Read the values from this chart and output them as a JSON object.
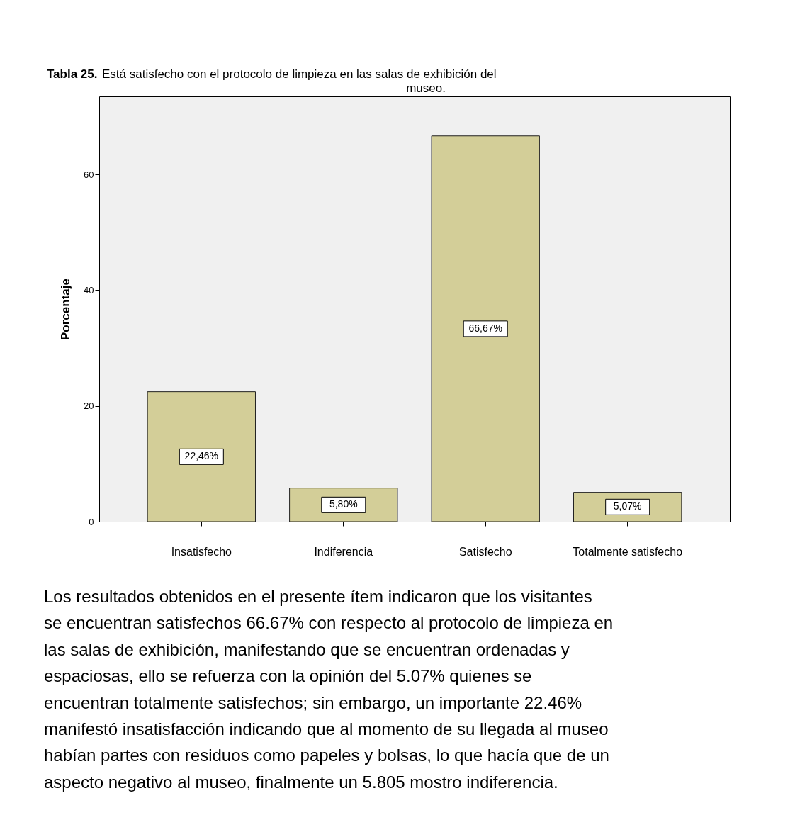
{
  "chart_data": {
    "type": "bar",
    "title": "Tabla 25. Está satisfecho con el protocolo de limpieza en las salas de exhibición del museo.",
    "ylabel": "Porcentaje",
    "categories": [
      "Insatisfecho",
      "Indiferencia",
      "Satisfecho",
      "Totalmente satisfecho"
    ],
    "values": [
      22.46,
      5.8,
      66.67,
      5.07
    ],
    "value_labels": [
      "22,46%",
      "5,80%",
      "66,67%",
      "5,07%"
    ],
    "color": "#d3ce98",
    "ylim": [
      0,
      73.5
    ],
    "yticks": [
      0,
      20,
      40,
      60
    ],
    "grid": false,
    "annotations": [
      "Los resultados obtenidos en el presente ítem indicaron que los visitantes se encuentran satisfechos 66.67% con respecto al protocolo de limpieza en las salas de exhibición, manifestando que se encuentran ordenadas y espaciosas, ello se refuerza con la opinión del 5.07% quienes se encuentran totalmente satisfechos; sin embargo, un importante 22.46% manifestó insatisfacción indicando que al momento de su llegada al museo habían partes con residuos como papeles y bolsas, lo que hacía que de un aspecto negativo al museo, finalmente un 5.805 mostro indiferencia."
    ]
  }
}
